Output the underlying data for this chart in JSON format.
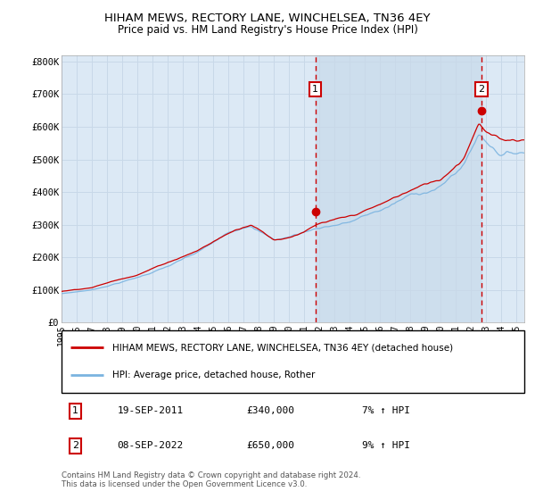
{
  "title": "HIHAM MEWS, RECTORY LANE, WINCHELSEA, TN36 4EY",
  "subtitle": "Price paid vs. HM Land Registry's House Price Index (HPI)",
  "ylim": [
    0,
    820000
  ],
  "xlim_start": 1995.0,
  "xlim_end": 2025.5,
  "background_color": "#ffffff",
  "plot_bg_color": "#dce9f5",
  "grid_color": "#c8d8e8",
  "hpi_line_color": "#7ab3e0",
  "price_line_color": "#cc0000",
  "dashed_line_color": "#cc0000",
  "marker1_x": 2011.72,
  "marker1_y": 340000,
  "marker2_x": 2022.68,
  "marker2_y": 650000,
  "legend_price_label": "HIHAM MEWS, RECTORY LANE, WINCHELSEA, TN36 4EY (detached house)",
  "legend_hpi_label": "HPI: Average price, detached house, Rother",
  "note1_date": "19-SEP-2011",
  "note1_price": "£340,000",
  "note1_hpi": "7% ↑ HPI",
  "note2_date": "08-SEP-2022",
  "note2_price": "£650,000",
  "note2_hpi": "9% ↑ HPI",
  "footer": "Contains HM Land Registry data © Crown copyright and database right 2024.\nThis data is licensed under the Open Government Licence v3.0.",
  "ytick_labels": [
    "£0",
    "£100K",
    "£200K",
    "£300K",
    "£400K",
    "£500K",
    "£600K",
    "£700K",
    "£800K"
  ],
  "ytick_values": [
    0,
    100000,
    200000,
    300000,
    400000,
    500000,
    600000,
    700000,
    800000
  ],
  "xticks": [
    1995,
    1996,
    1997,
    1998,
    1999,
    2000,
    2001,
    2002,
    2003,
    2004,
    2005,
    2006,
    2007,
    2008,
    2009,
    2010,
    2011,
    2012,
    2013,
    2014,
    2015,
    2016,
    2017,
    2018,
    2019,
    2020,
    2021,
    2022,
    2023,
    2024,
    2025
  ]
}
